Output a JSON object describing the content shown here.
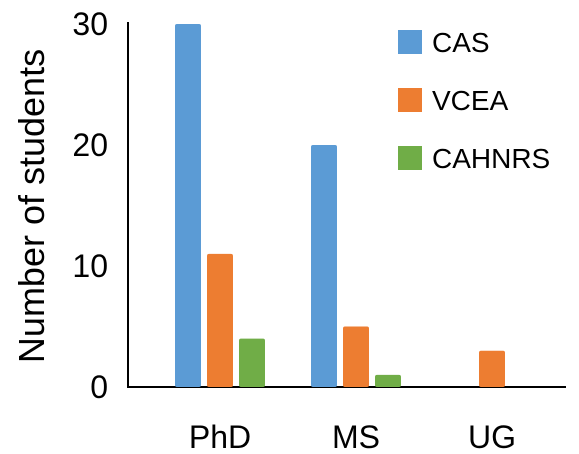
{
  "chart_data": {
    "type": "bar",
    "title": "",
    "xlabel": "",
    "ylabel": "Number of students",
    "categories": [
      "PhD",
      "MS",
      "UG"
    ],
    "series": [
      {
        "name": "CAS",
        "color": "#5B9BD5",
        "values": [
          30,
          20,
          0
        ]
      },
      {
        "name": "VCEA",
        "color": "#ED7D31",
        "values": [
          11,
          5,
          3
        ]
      },
      {
        "name": "CAHNRS",
        "color": "#70AD47",
        "values": [
          4,
          1,
          0
        ]
      }
    ],
    "ylim": [
      0,
      30
    ],
    "yticks": [
      0,
      10,
      20,
      30
    ],
    "grid": false,
    "legend_position": "top-right"
  }
}
